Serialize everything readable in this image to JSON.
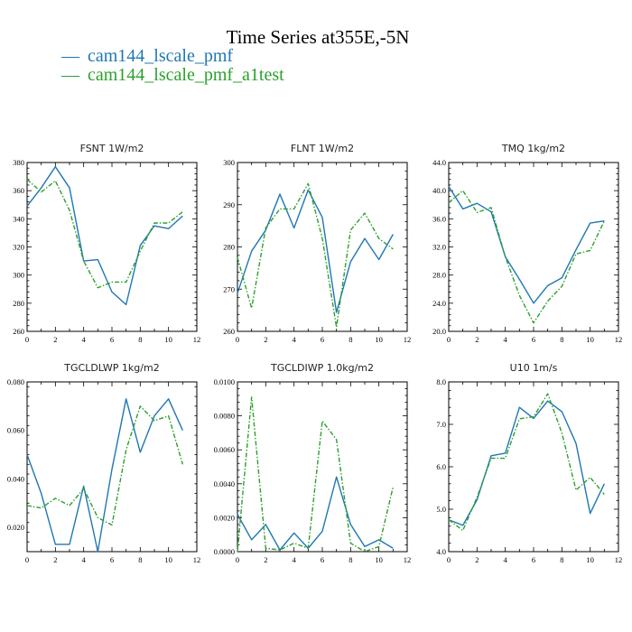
{
  "figure": {
    "title": "Time Series at355E,-5N"
  },
  "colors": {
    "cam144_lscale_pmf": "#1f77b4",
    "cam144_lscale_pmf_a1test": "#2ca02c"
  },
  "legend": [
    {
      "name": "cam144_lscale_pmf",
      "style": "solid",
      "marker": "—"
    },
    {
      "name": "cam144_lscale_pmf_a1test",
      "style": "dashed",
      "marker": "—"
    }
  ],
  "chart_data": [
    {
      "type": "line",
      "title": "FSNT   1W/m2",
      "x": [
        0,
        1,
        2,
        3,
        4,
        5,
        6,
        7,
        8,
        9,
        10,
        11
      ],
      "xlim": [
        0,
        12
      ],
      "xticks": [
        0,
        2,
        4,
        6,
        8,
        10,
        12
      ],
      "ylim": [
        260,
        380
      ],
      "yticks": [
        260,
        280,
        300,
        320,
        340,
        360,
        380
      ],
      "ytick_labels": [
        "260",
        "280",
        "300",
        "320",
        "340",
        "360",
        "380"
      ],
      "series": [
        {
          "name": "cam144_lscale_pmf",
          "values": [
            349,
            362,
            377,
            362,
            310,
            311,
            288,
            279,
            321,
            335,
            333,
            342
          ]
        },
        {
          "name": "cam144_lscale_pmf_a1test",
          "values": [
            368,
            359,
            367,
            346,
            310,
            291,
            295,
            295,
            317,
            337,
            337,
            345
          ]
        }
      ]
    },
    {
      "type": "line",
      "title": "FLNT   1W/m2",
      "x": [
        0,
        1,
        2,
        3,
        4,
        5,
        6,
        7,
        8,
        9,
        10,
        11
      ],
      "xlim": [
        0,
        12
      ],
      "xticks": [
        0,
        2,
        4,
        6,
        8,
        10,
        12
      ],
      "ylim": [
        260,
        300
      ],
      "yticks": [
        260,
        270,
        280,
        290,
        300
      ],
      "ytick_labels": [
        "260",
        "270",
        "280",
        "290",
        "300"
      ],
      "series": [
        {
          "name": "cam144_lscale_pmf",
          "values": [
            269,
            279,
            284,
            292.5,
            284.5,
            293.5,
            287,
            264.5,
            276.5,
            282,
            277,
            283
          ]
        },
        {
          "name": "cam144_lscale_pmf_a1test",
          "values": [
            277.5,
            265.5,
            284.5,
            289,
            289,
            295,
            282,
            261,
            284,
            288,
            282,
            279.5
          ]
        }
      ]
    },
    {
      "type": "line",
      "title": "TMQ   1kg/m2",
      "x": [
        0,
        1,
        2,
        3,
        4,
        5,
        6,
        7,
        8,
        9,
        10,
        11
      ],
      "xlim": [
        0,
        12
      ],
      "xticks": [
        0,
        2,
        4,
        6,
        8,
        10,
        12
      ],
      "ylim": [
        20,
        44
      ],
      "yticks": [
        20,
        24,
        28,
        32,
        36,
        40,
        44
      ],
      "ytick_labels": [
        "20.0",
        "24.0",
        "28.0",
        "32.0",
        "36.0",
        "40.0",
        "44.0"
      ],
      "series": [
        {
          "name": "cam144_lscale_pmf",
          "values": [
            40.6,
            37.4,
            38.2,
            37,
            30.6,
            27.4,
            24,
            26.5,
            27.6,
            31.6,
            35.4,
            35.7
          ]
        },
        {
          "name": "cam144_lscale_pmf_a1test",
          "values": [
            38.3,
            40,
            36.9,
            37.6,
            30.6,
            25.1,
            21.2,
            24.3,
            26.4,
            31,
            31.5,
            35.7
          ]
        }
      ]
    },
    {
      "type": "line",
      "title": "TGCLDLWP   1kg/m2",
      "x": [
        0,
        1,
        2,
        3,
        4,
        5,
        6,
        7,
        8,
        9,
        10,
        11
      ],
      "xlim": [
        0,
        12
      ],
      "xticks": [
        0,
        2,
        4,
        6,
        8,
        10,
        12
      ],
      "ylim": [
        0.01,
        0.08
      ],
      "yticks": [
        0.02,
        0.04,
        0.06,
        0.08
      ],
      "ytick_labels": [
        "0.020",
        "0.040",
        "0.060",
        "0.080"
      ],
      "series": [
        {
          "name": "cam144_lscale_pmf",
          "values": [
            0.05,
            0.034,
            0.013,
            0.013,
            0.037,
            0.01,
            0.044,
            0.073,
            0.051,
            0.066,
            0.073,
            0.06
          ]
        },
        {
          "name": "cam144_lscale_pmf_a1test",
          "values": [
            0.029,
            0.028,
            0.032,
            0.029,
            0.036,
            0.024,
            0.021,
            0.052,
            0.07,
            0.064,
            0.066,
            0.046
          ]
        }
      ]
    },
    {
      "type": "line",
      "title": "TGCLDIWP   1.0kg/m2",
      "x": [
        0,
        1,
        2,
        3,
        4,
        5,
        6,
        7,
        8,
        9,
        10,
        11
      ],
      "xlim": [
        0,
        12
      ],
      "xticks": [
        0,
        2,
        4,
        6,
        8,
        10,
        12
      ],
      "ylim": [
        0,
        0.01
      ],
      "yticks": [
        0,
        0.002,
        0.004,
        0.006,
        0.008,
        0.01
      ],
      "ytick_labels": [
        "0.0000",
        "0.0020",
        "0.0040",
        "0.0060",
        "0.0080",
        "0.0100"
      ],
      "series": [
        {
          "name": "cam144_lscale_pmf",
          "values": [
            0.0022,
            0.0007,
            0.0016,
            0.0001,
            0.0011,
            0.0002,
            0.0012,
            0.0044,
            0.0016,
            0.0003,
            0.0007,
            0.0002
          ]
        },
        {
          "name": "cam144_lscale_pmf_a1test",
          "values": [
            0.0,
            0.0091,
            0.0002,
            0.0001,
            0.0005,
            0.0002,
            0.0077,
            0.0066,
            0.0005,
            0.0,
            0.0003,
            0.0038
          ]
        }
      ]
    },
    {
      "type": "line",
      "title": "U10   1m/s",
      "x": [
        0,
        1,
        2,
        3,
        4,
        5,
        6,
        7,
        8,
        9,
        10,
        11
      ],
      "xlim": [
        0,
        12
      ],
      "xticks": [
        0,
        2,
        4,
        6,
        8,
        10,
        12
      ],
      "ylim": [
        4,
        8
      ],
      "yticks": [
        4,
        5,
        6,
        7,
        8
      ],
      "ytick_labels": [
        "4.0",
        "5.0",
        "6.0",
        "7.0",
        "8.0"
      ],
      "series": [
        {
          "name": "cam144_lscale_pmf",
          "values": [
            4.75,
            4.62,
            5.22,
            6.26,
            6.32,
            7.4,
            7.14,
            7.55,
            7.3,
            6.55,
            4.9,
            5.6
          ]
        },
        {
          "name": "cam144_lscale_pmf_a1test",
          "values": [
            4.75,
            4.5,
            5.28,
            6.2,
            6.2,
            7.13,
            7.18,
            7.72,
            6.8,
            5.45,
            5.75,
            5.35
          ]
        }
      ]
    }
  ]
}
